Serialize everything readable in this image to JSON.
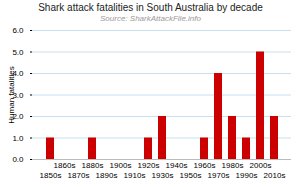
{
  "chart_data": {
    "type": "bar",
    "title": "Shark attack fatalities in South Australia by decade",
    "subtitle": "Source: SharkAttackFile.info",
    "ylabel": "Human fatalities",
    "categories": [
      "1850s",
      "1860s",
      "1870s",
      "1880s",
      "1890s",
      "1900s",
      "1910s",
      "1920s",
      "1930s",
      "1940s",
      "1950s",
      "1960s",
      "1970s",
      "1980s",
      "1990s",
      "2000s",
      "2010s"
    ],
    "values": [
      1,
      0,
      0,
      1,
      0,
      0,
      0,
      1,
      2,
      0,
      0,
      1,
      4,
      2,
      1,
      5,
      2
    ],
    "color": "#cc0000",
    "ylim": [
      0,
      6
    ],
    "yticks": [
      0,
      1,
      2,
      3,
      4,
      5,
      6
    ],
    "grid": true
  }
}
